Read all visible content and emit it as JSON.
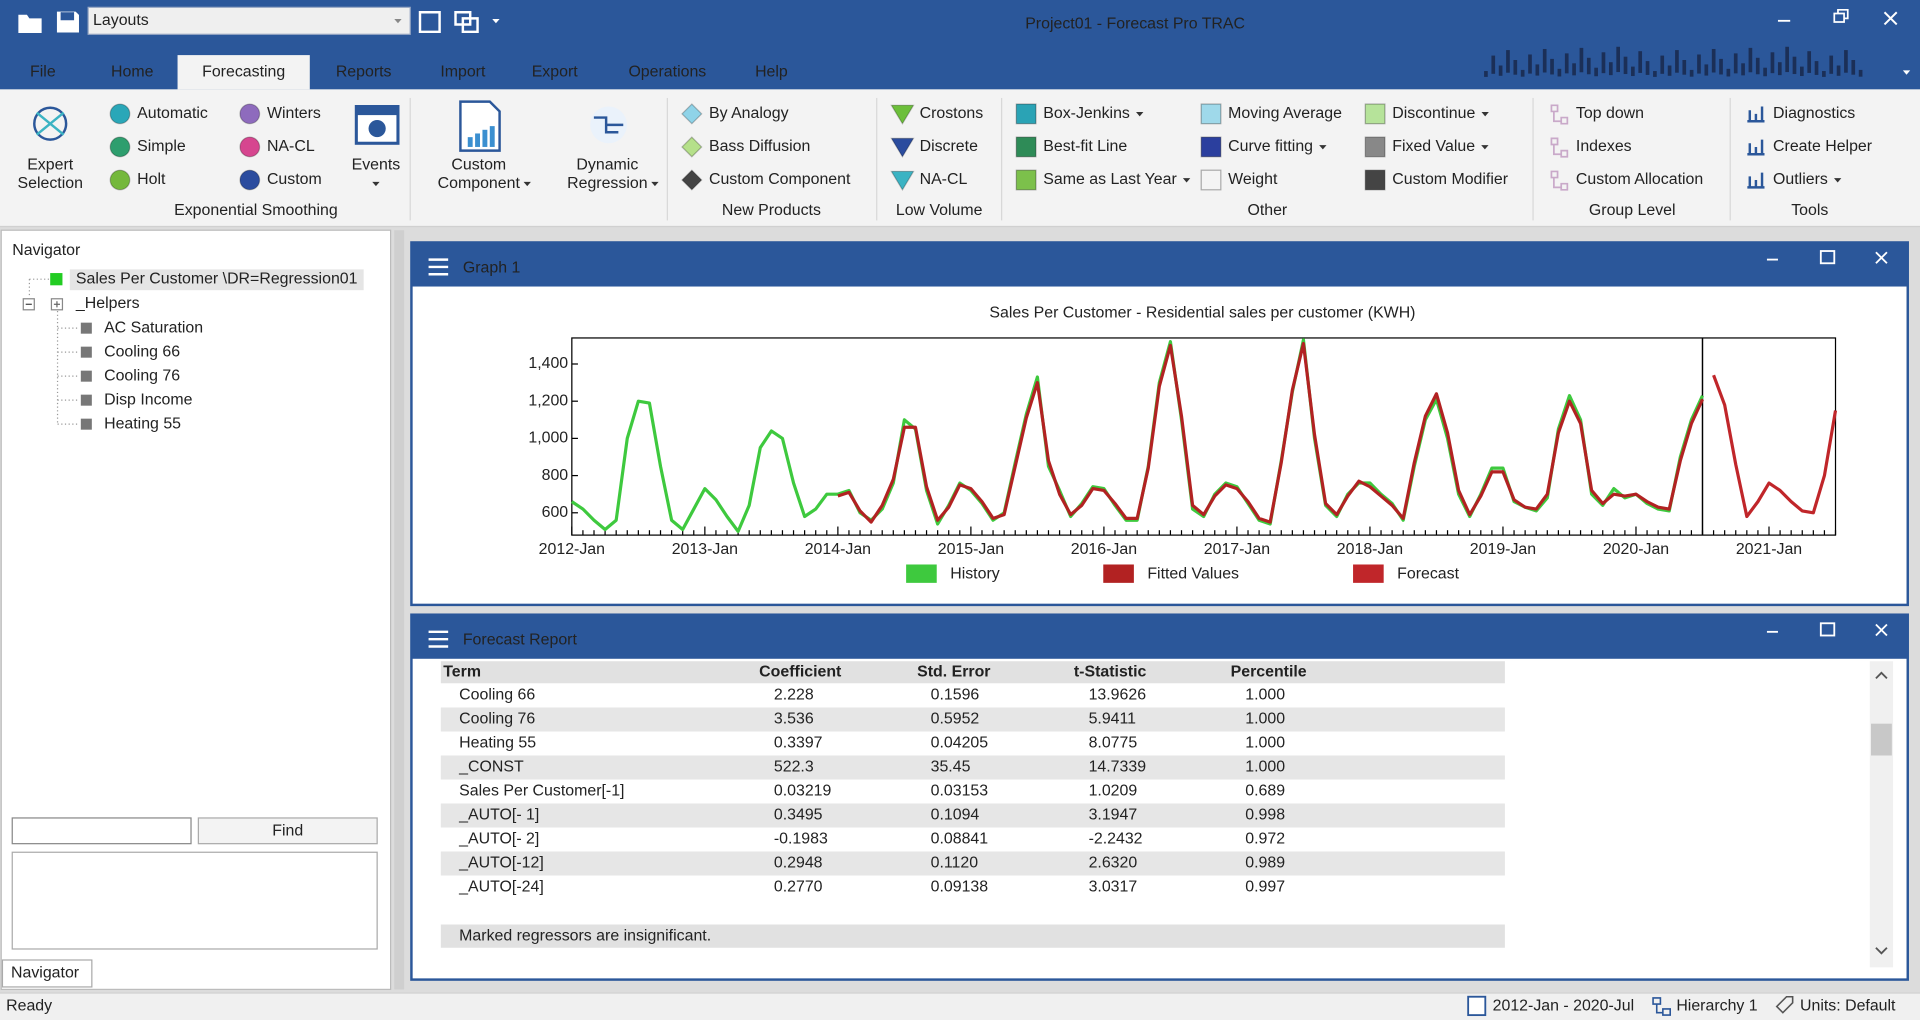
{
  "window": {
    "layouts_placeholder": "Layouts",
    "title": "Project01 - Forecast Pro TRAC"
  },
  "menu": {
    "items": [
      "File",
      "Home",
      "Forecasting",
      "Reports",
      "Import",
      "Export",
      "Operations",
      "Help"
    ],
    "active_index": 2
  },
  "ribbon": {
    "groups": [
      {
        "label": "Exponential Smoothing",
        "items": [
          {
            "lines": [
              "Expert",
              "Selection"
            ]
          },
          {
            "label": "Automatic",
            "color": "#2aa7b8"
          },
          {
            "label": "Simple",
            "color": "#2e9e6e"
          },
          {
            "label": "Holt",
            "color": "#74b83c"
          },
          {
            "label": "Winters",
            "color": "#8e6bbd"
          },
          {
            "label": "NA-CL",
            "color": "#d6468f"
          },
          {
            "label": "Custom",
            "color": "#2b4c9e"
          },
          {
            "lines": [
              "Events"
            ],
            "dropdown": true
          }
        ]
      },
      {
        "items": [
          {
            "lines": [
              "Custom",
              "Component"
            ],
            "dropdown": true
          },
          {
            "lines": [
              "Dynamic",
              "Regression"
            ],
            "dropdown": true
          }
        ]
      },
      {
        "label": "New Products",
        "items": [
          {
            "label": "By Analogy",
            "color": "#8fd3e8"
          },
          {
            "label": "Bass Diffusion",
            "color": "#b5e08a"
          },
          {
            "label": "Custom Component",
            "color": "#444444"
          }
        ]
      },
      {
        "label": "Low Volume",
        "items": [
          {
            "label": "Crostons",
            "color": "#6cbf3a"
          },
          {
            "label": "Discrete",
            "color": "#2b4c9e"
          },
          {
            "label": "NA-CL",
            "color": "#3bb3c3"
          }
        ]
      },
      {
        "label": "Other",
        "items": [
          {
            "label": "Box-Jenkins",
            "color": "#2aa3b5",
            "dropdown": true
          },
          {
            "label": "Best-fit Line",
            "color": "#2e8b57"
          },
          {
            "label": "Same as Last Year",
            "color": "#7cc04b",
            "dropdown": true
          },
          {
            "label": "Moving Average",
            "color": "#9fd9ea"
          },
          {
            "label": "Curve fitting",
            "color": "#2b3f9e",
            "dropdown": true
          },
          {
            "label": "Weight",
            "color": "#f4f4f4"
          },
          {
            "label": "Discontinue",
            "color": "#b6e39a",
            "dropdown": true
          },
          {
            "label": "Fixed Value",
            "color": "#888888",
            "dropdown": true
          },
          {
            "label": "Custom Modifier",
            "color": "#444444"
          }
        ]
      },
      {
        "label": "Group Level",
        "disabled": true,
        "items": [
          {
            "label": "Top down",
            "color": "#c9a9c9"
          },
          {
            "label": "Indexes",
            "color": "#c9a9c9"
          },
          {
            "label": "Custom Allocation",
            "color": "#c9a9c9"
          }
        ]
      },
      {
        "label": "Tools",
        "items": [
          {
            "label": "Diagnostics",
            "color": "#2b579a"
          },
          {
            "label": "Create Helper",
            "color": "#2b579a"
          },
          {
            "label": "Outliers",
            "color": "#2b579a",
            "dropdown": true
          }
        ]
      }
    ]
  },
  "navigator": {
    "title": "Navigator",
    "selected": {
      "label": "Sales Per Customer \\DR=Regression01",
      "color": "#22cc22"
    },
    "folder": {
      "label": "_Helpers",
      "children": [
        "AC Saturation",
        "Cooling 66",
        "Cooling 76",
        "Disp Income",
        "Heating 55"
      ]
    },
    "find_button": "Find",
    "tab": "Navigator"
  },
  "graph_window": {
    "title": "Graph 1"
  },
  "chart_data": {
    "type": "line",
    "title": "Sales Per Customer - Residential sales per customer (KWH)",
    "categories": [
      "2012-Jan",
      null,
      null,
      null,
      null,
      null,
      null,
      null,
      null,
      null,
      null,
      null,
      "2013-Jan",
      null,
      null,
      null,
      null,
      null,
      null,
      null,
      null,
      null,
      null,
      null,
      "2014-Jan",
      null,
      null,
      null,
      null,
      null,
      null,
      null,
      null,
      null,
      null,
      null,
      "2015-Jan",
      null,
      null,
      null,
      null,
      null,
      null,
      null,
      null,
      null,
      null,
      null,
      "2016-Jan",
      null,
      null,
      null,
      null,
      null,
      null,
      null,
      null,
      null,
      null,
      null,
      "2017-Jan",
      null,
      null,
      null,
      null,
      null,
      null,
      null,
      null,
      null,
      null,
      null,
      "2018-Jan",
      null,
      null,
      null,
      null,
      null,
      null,
      null,
      null,
      null,
      null,
      null,
      "2019-Jan",
      null,
      null,
      null,
      null,
      null,
      null,
      null,
      null,
      null,
      null,
      null,
      "2020-Jan",
      null,
      null,
      null,
      null,
      null,
      null,
      null,
      null,
      null,
      null,
      null,
      "2021-Jan",
      null,
      null,
      null,
      null,
      null,
      null
    ],
    "series": [
      {
        "name": "History",
        "color": "#3ec93e",
        "values": [
          660,
          620,
          560,
          510,
          560,
          1000,
          1200,
          1190,
          850,
          560,
          510,
          620,
          730,
          670,
          580,
          500,
          640,
          950,
          1040,
          1000,
          760,
          580,
          620,
          700,
          700,
          720,
          600,
          560,
          620,
          760,
          1100,
          1050,
          720,
          540,
          640,
          760,
          720,
          650,
          560,
          600,
          870,
          1130,
          1330,
          850,
          720,
          580,
          650,
          740,
          730,
          640,
          560,
          560,
          850,
          1300,
          1520,
          1100,
          620,
          580,
          700,
          760,
          740,
          650,
          560,
          540,
          880,
          1250,
          1530,
          1000,
          640,
          580,
          700,
          760,
          760,
          700,
          650,
          560,
          850,
          1100,
          1210,
          1000,
          700,
          580,
          700,
          840,
          840,
          660,
          630,
          610,
          680,
          1050,
          1230,
          1100,
          700,
          640,
          730,
          680,
          700,
          650,
          620,
          610,
          900,
          1100,
          1230,
          null,
          null,
          null,
          null,
          null,
          null,
          null,
          null,
          null,
          null,
          null,
          null
        ]
      },
      {
        "name": "Fitted Values",
        "color": "#b22222",
        "values": [
          null,
          null,
          null,
          null,
          null,
          null,
          null,
          null,
          null,
          null,
          null,
          null,
          null,
          null,
          null,
          null,
          null,
          null,
          null,
          null,
          null,
          null,
          null,
          null,
          690,
          710,
          610,
          550,
          640,
          780,
          1060,
          1060,
          740,
          560,
          630,
          750,
          730,
          660,
          570,
          590,
          850,
          1110,
          1300,
          880,
          700,
          590,
          640,
          730,
          720,
          650,
          570,
          570,
          840,
          1280,
          1500,
          1120,
          640,
          590,
          690,
          750,
          730,
          660,
          570,
          550,
          870,
          1260,
          1510,
          1020,
          650,
          590,
          690,
          770,
          740,
          690,
          640,
          570,
          870,
          1120,
          1240,
          1030,
          720,
          590,
          690,
          820,
          820,
          670,
          630,
          620,
          700,
          1030,
          1200,
          1080,
          720,
          650,
          700,
          690,
          700,
          660,
          630,
          620,
          880,
          1080,
          1210,
          null,
          null,
          null,
          null,
          null,
          null,
          null,
          null,
          null,
          null,
          null,
          null
        ]
      },
      {
        "name": "Forecast",
        "color": "#c0262a",
        "values": [
          null,
          null,
          null,
          null,
          null,
          null,
          null,
          null,
          null,
          null,
          null,
          null,
          null,
          null,
          null,
          null,
          null,
          null,
          null,
          null,
          null,
          null,
          null,
          null,
          null,
          null,
          null,
          null,
          null,
          null,
          null,
          null,
          null,
          null,
          null,
          null,
          null,
          null,
          null,
          null,
          null,
          null,
          null,
          null,
          null,
          null,
          null,
          null,
          null,
          null,
          null,
          null,
          null,
          null,
          null,
          null,
          null,
          null,
          null,
          null,
          null,
          null,
          null,
          null,
          null,
          null,
          null,
          null,
          null,
          null,
          null,
          null,
          null,
          null,
          null,
          null,
          null,
          null,
          null,
          null,
          null,
          null,
          null,
          null,
          null,
          null,
          null,
          null,
          null,
          null,
          null,
          null,
          null,
          null,
          null,
          null,
          null,
          null,
          null,
          null,
          null,
          null,
          null,
          1340,
          1180,
          860,
          580,
          660,
          760,
          720,
          660,
          610,
          600,
          800,
          1150
        ]
      }
    ],
    "ylim": [
      480,
      1540
    ],
    "yticks": [
      600,
      800,
      {
        "value": 1000,
        "label": "1,000"
      },
      {
        "value": 1200,
        "label": "1,200"
      },
      {
        "value": 1400,
        "label": "1,400"
      }
    ],
    "grid": false,
    "legend": "bottom"
  },
  "report_window": {
    "title": "Forecast Report",
    "table": {
      "header": [
        "Term",
        "Coefficient",
        "Std. Error",
        "t-Statistic",
        "Percentile"
      ],
      "rows": [
        {
          "cells": [
            "Cooling 66",
            "2.228",
            "0.1596",
            "13.9626",
            "1.000"
          ]
        },
        {
          "cells": [
            "Cooling 76",
            "3.536",
            "0.5952",
            "5.9411",
            "1.000"
          ]
        },
        {
          "cells": [
            "Heating 55",
            "0.3397",
            "0.04205",
            "8.0775",
            "1.000"
          ]
        },
        {
          "cells": [
            "_CONST",
            "522.3",
            "35.45",
            "14.7339",
            "1.000"
          ]
        },
        {
          "cells": [
            "Sales Per Customer[-1]",
            "0.03219",
            "0.03153",
            "1.0209",
            "0.689"
          ],
          "marked": true
        },
        {
          "cells": [
            "_AUTO[- 1]",
            "0.3495",
            "0.1094",
            "3.1947",
            "0.998"
          ]
        },
        {
          "cells": [
            "_AUTO[- 2]",
            "-0.1983",
            "0.08841",
            "-2.2432",
            "0.972"
          ]
        },
        {
          "cells": [
            "_AUTO[-12]",
            "0.2948",
            "0.1120",
            "2.6320",
            "0.989"
          ]
        },
        {
          "cells": [
            "_AUTO[-24]",
            "0.2770",
            "0.09138",
            "3.0317",
            "0.997"
          ]
        }
      ]
    },
    "note": "Marked regressors are insignificant.",
    "marked_color": "#d9363e"
  },
  "status_bar": {
    "status": "Ready",
    "date_range": "2012-Jan - 2020-Jul",
    "hierarchy": "Hierarchy 1",
    "units": "Units: Default"
  }
}
